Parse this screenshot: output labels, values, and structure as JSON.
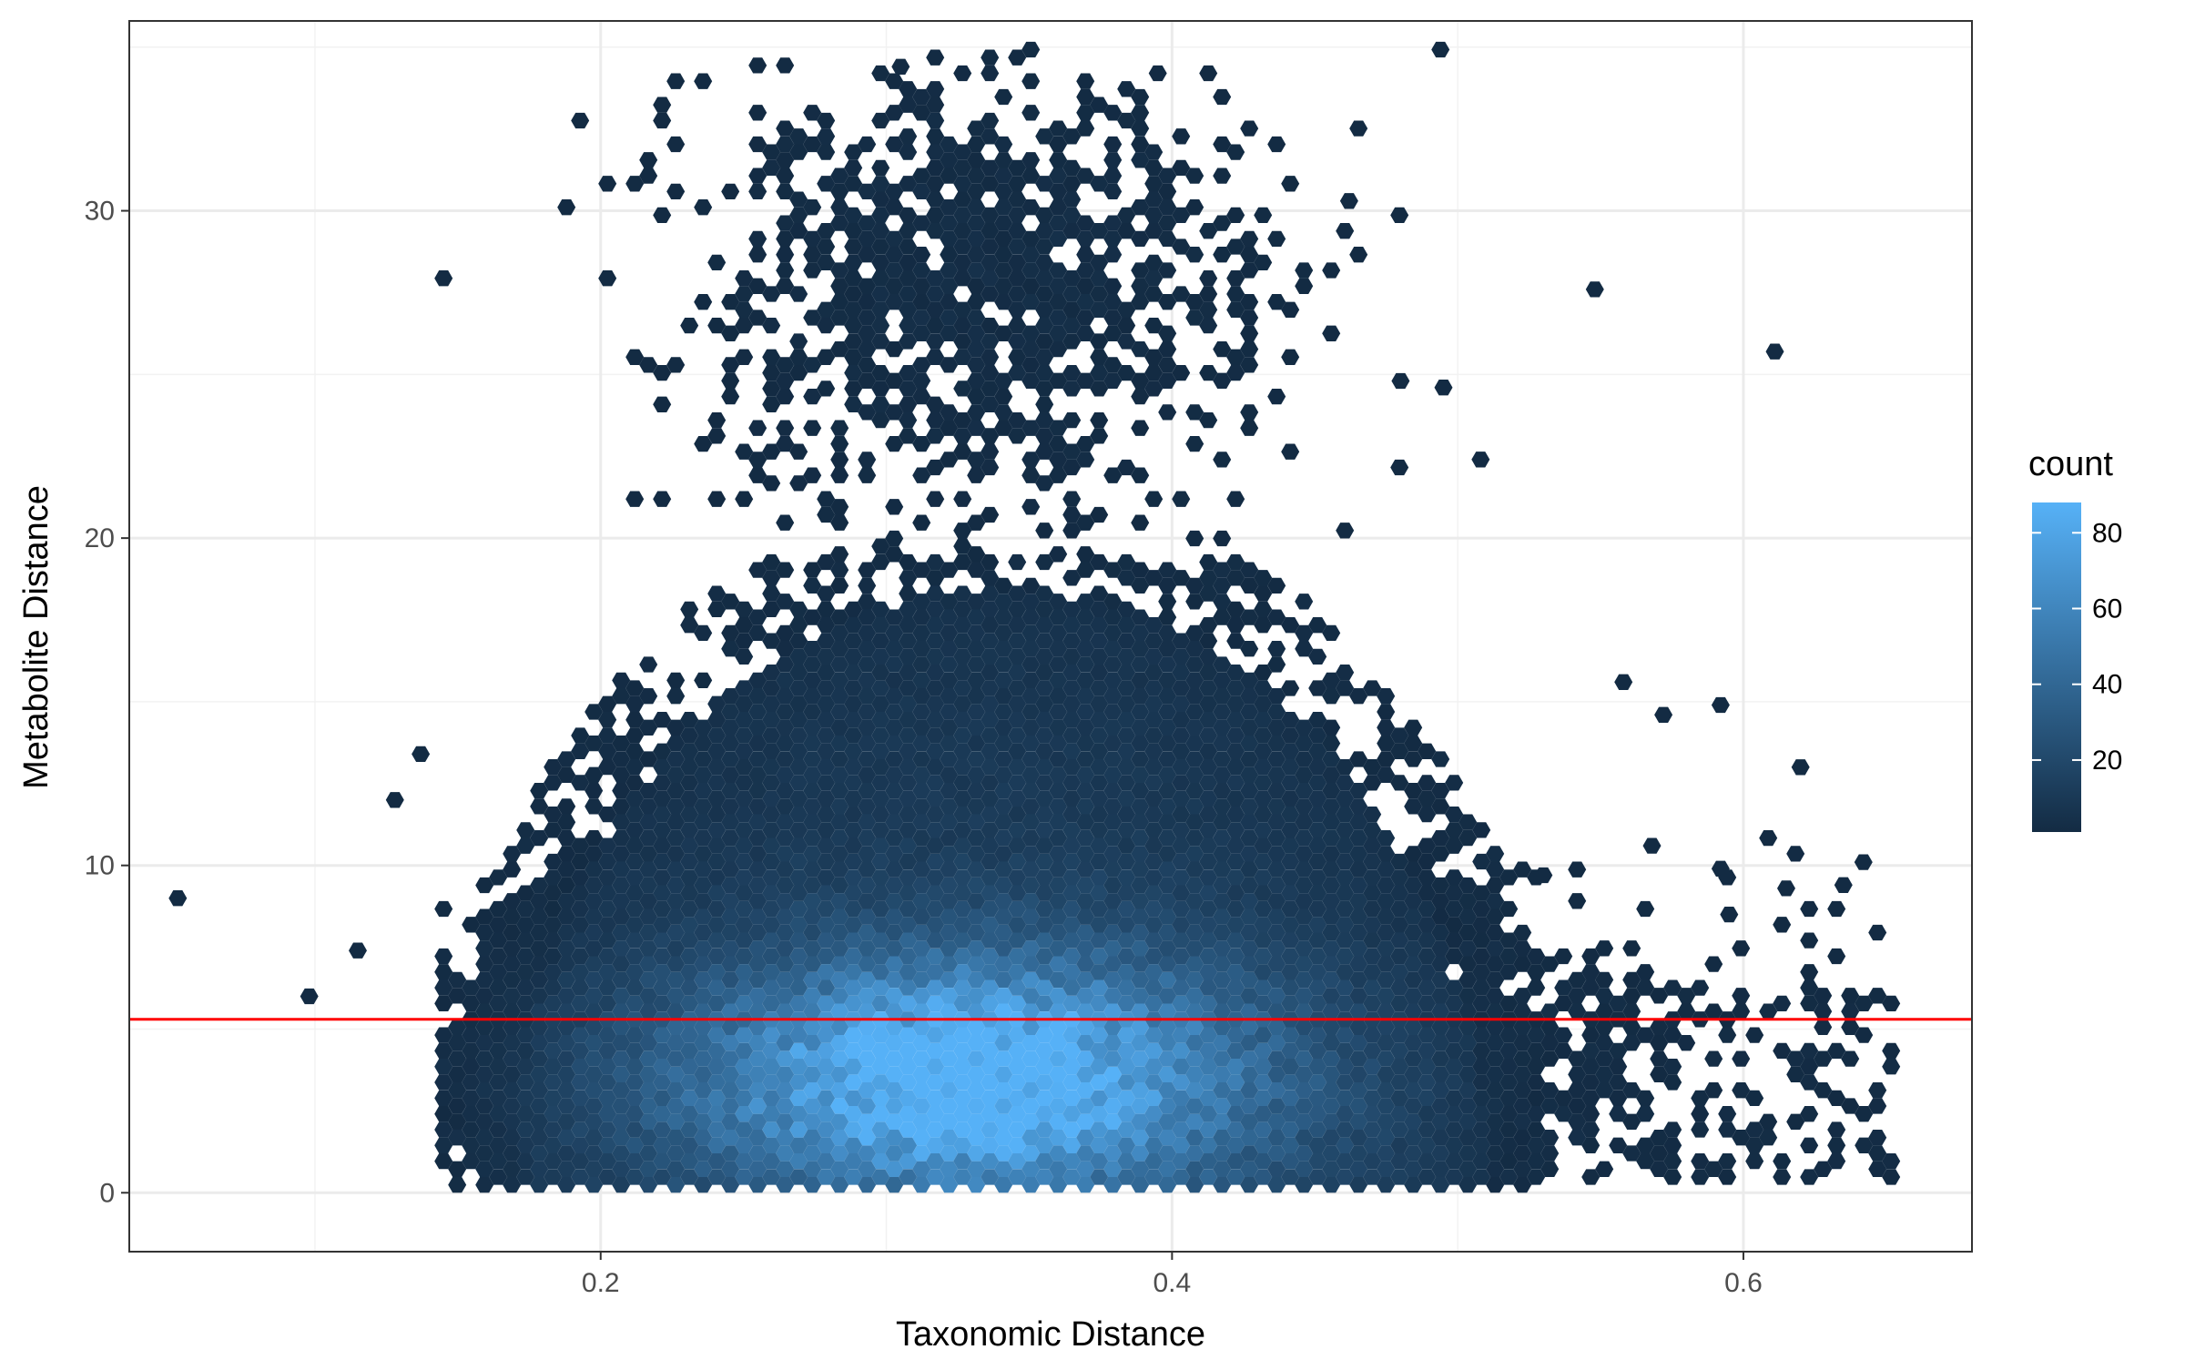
{
  "chart_data": {
    "type": "hexbin",
    "xlabel": "Taxonomic Distance",
    "ylabel": "Metabolite Distance",
    "xlim": [
      0.035,
      0.68
    ],
    "ylim": [
      -1.8,
      35.8
    ],
    "x_ticks": [
      0.2,
      0.4,
      0.6
    ],
    "x_tick_labels": [
      "0.2",
      "0.4",
      "0.6"
    ],
    "y_ticks": [
      0,
      10,
      20,
      30
    ],
    "y_tick_labels": [
      "0",
      "10",
      "20",
      "30"
    ],
    "x_minor_ticks": [
      0.1,
      0.3,
      0.5
    ],
    "y_minor_ticks": [
      5,
      15,
      25,
      35
    ],
    "grid": true,
    "reference_line": {
      "orientation": "horizontal",
      "y": 5.3,
      "color": "#ff0000"
    },
    "legend": {
      "title": "count",
      "placement": "right",
      "range": [
        1,
        88
      ],
      "ticks": [
        20,
        40,
        60,
        80
      ],
      "tick_labels": [
        "20",
        "40",
        "60",
        "80"
      ],
      "color_low": "#132b43",
      "color_high": "#56b1f7"
    },
    "density_summary": {
      "core_center": {
        "x": 0.33,
        "y": 3.5
      },
      "core_spread": {
        "x": 0.07,
        "y": 2.6
      },
      "peak_count": 88,
      "main_cloud_x_range": [
        0.17,
        0.51
      ],
      "main_cloud_y_range": [
        0,
        19
      ],
      "upper_cluster_center": {
        "x": 0.33,
        "y": 28
      },
      "right_tail_x_range": [
        0.51,
        0.65
      ],
      "right_tail_y_range": [
        0.5,
        10.5
      ]
    },
    "outliers": [
      {
        "x": 0.052,
        "y": 9.0
      },
      {
        "x": 0.098,
        "y": 6.0
      },
      {
        "x": 0.128,
        "y": 12.0
      },
      {
        "x": 0.115,
        "y": 7.4
      },
      {
        "x": 0.137,
        "y": 13.4
      },
      {
        "x": 0.548,
        "y": 27.6
      },
      {
        "x": 0.611,
        "y": 25.7
      },
      {
        "x": 0.558,
        "y": 15.6
      },
      {
        "x": 0.592,
        "y": 14.9
      },
      {
        "x": 0.572,
        "y": 14.6
      },
      {
        "x": 0.62,
        "y": 13.0
      },
      {
        "x": 0.48,
        "y": 24.8
      },
      {
        "x": 0.495,
        "y": 24.6
      },
      {
        "x": 0.508,
        "y": 22.4
      },
      {
        "x": 0.395,
        "y": 34.2
      },
      {
        "x": 0.305,
        "y": 34.4
      },
      {
        "x": 0.462,
        "y": 30.3
      },
      {
        "x": 0.568,
        "y": 10.6
      },
      {
        "x": 0.642,
        "y": 10.1
      },
      {
        "x": 0.635,
        "y": 9.4
      },
      {
        "x": 0.592,
        "y": 9.9
      },
      {
        "x": 0.615,
        "y": 9.3
      },
      {
        "x": 0.595,
        "y": 8.5
      },
      {
        "x": 0.53,
        "y": 9.7
      }
    ]
  }
}
